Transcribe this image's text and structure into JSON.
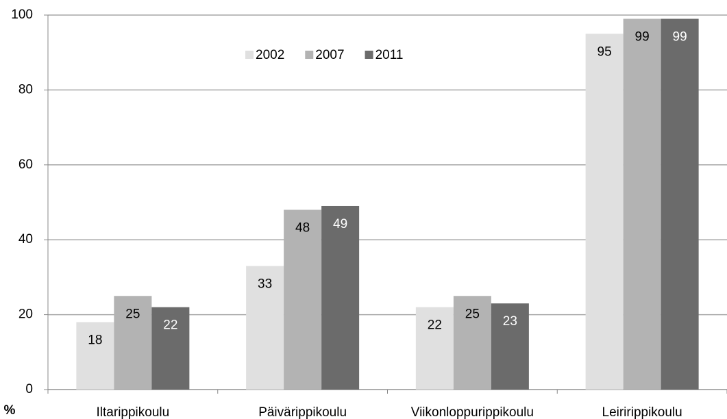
{
  "chart_data": {
    "type": "bar",
    "y_label": "%",
    "categories": [
      "Iltarippikoulu",
      "Päivärippikoulu",
      "Viikonloppurippikoulu",
      "Leiririppikoulu"
    ],
    "series": [
      {
        "name": "2002",
        "color": "#e0e0e0",
        "values": [
          18,
          33,
          22,
          95
        ]
      },
      {
        "name": "2007",
        "color": "#b3b3b3",
        "values": [
          25,
          48,
          25,
          99
        ]
      },
      {
        "name": "2011",
        "color": "#6b6b6b",
        "values": [
          22,
          49,
          23,
          99
        ]
      }
    ],
    "ylim": [
      0,
      100
    ],
    "yticks": [
      0,
      20,
      40,
      60,
      80,
      100
    ],
    "grid": true,
    "legend": "top",
    "data_labels": true
  }
}
